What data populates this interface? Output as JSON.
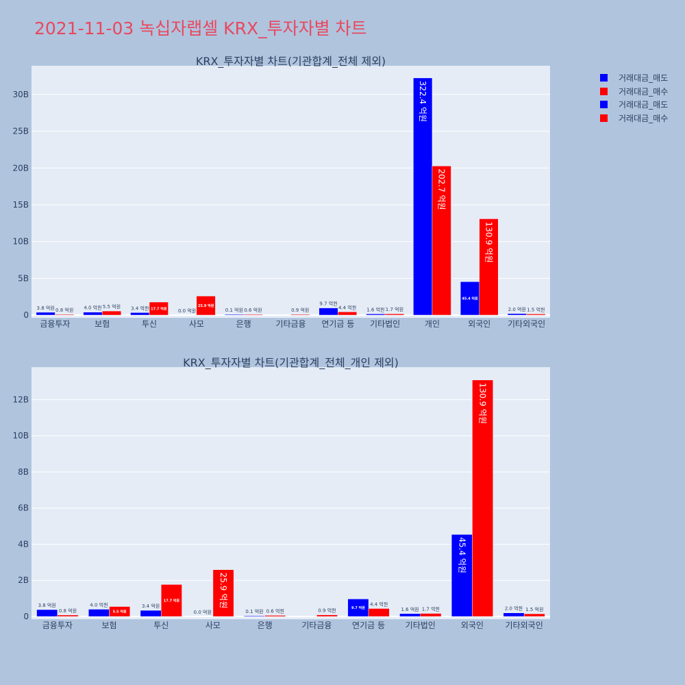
{
  "page": {
    "title": "2021-11-03 녹십자랩셀 KRX_투자자별 차트"
  },
  "legend": [
    {
      "label": "거래대금_매도",
      "color": "#0000ff"
    },
    {
      "label": "거래대금_매수",
      "color": "#ff0000"
    },
    {
      "label": "거래대금_매도",
      "color": "#0000ff"
    },
    {
      "label": "거래대금_매수",
      "color": "#ff0000"
    }
  ],
  "chart_data": [
    {
      "type": "bar",
      "title": "KRX_투자자별 차트(기관합계_전체 제외)",
      "categories": [
        "금융투자",
        "보험",
        "투신",
        "사모",
        "은행",
        "기타금융",
        "연기금 등",
        "기타법인",
        "개인",
        "외국인",
        "기타외국인"
      ],
      "series": [
        {
          "name": "거래대금_매도",
          "color": "#0000ff",
          "values": [
            0.38,
            0.4,
            0.34,
            0.0,
            0.01,
            0.0,
            0.97,
            0.16,
            32.24,
            4.54,
            0.2
          ],
          "labels": [
            "3.8 억원",
            "4.0 억원",
            "3.4 억원",
            "0.0 억원",
            "0.1 억원",
            "",
            "9.7 억원",
            "1.6 억원",
            "322.4 억원",
            "45.4 억원",
            "2.0 억원"
          ]
        },
        {
          "name": "거래대금_매수",
          "color": "#ff0000",
          "values": [
            0.08,
            0.55,
            1.77,
            2.59,
            0.06,
            0.09,
            0.44,
            0.17,
            20.27,
            13.09,
            0.15
          ],
          "labels": [
            "0.8 억원",
            "5.5 억원",
            "17.7 억원",
            "25.9 억원",
            "0.6 억원",
            "0.9 억원",
            "4.4 억원",
            "1.7 억원",
            "202.7 억원",
            "130.9 억원",
            "1.5 억원"
          ]
        }
      ],
      "yticks": [
        0,
        5,
        10,
        15,
        20,
        25,
        30
      ],
      "ytick_labels": [
        "0",
        "5B",
        "10B",
        "15B",
        "20B",
        "25B",
        "30B"
      ],
      "ylim": [
        0,
        33.9
      ],
      "value_unit": "billions"
    },
    {
      "type": "bar",
      "title": "KRX_투자자별 차트(기관합계_전체_개인 제외)",
      "categories": [
        "금융투자",
        "보험",
        "투신",
        "사모",
        "은행",
        "기타금융",
        "연기금 등",
        "기타법인",
        "외국인",
        "기타외국인"
      ],
      "series": [
        {
          "name": "거래대금_매도",
          "color": "#0000ff",
          "values": [
            0.38,
            0.4,
            0.34,
            0.0,
            0.01,
            0.0,
            0.97,
            0.16,
            4.54,
            0.2
          ],
          "labels": [
            "3.8 억원",
            "4.0 억원",
            "3.4 억원",
            "0.0 억원",
            "0.1 억원",
            "",
            "9.7 억원",
            "1.6 억원",
            "45.4 억원",
            "2.0 억원"
          ]
        },
        {
          "name": "거래대금_매수",
          "color": "#ff0000",
          "values": [
            0.08,
            0.55,
            1.77,
            2.59,
            0.06,
            0.09,
            0.44,
            0.17,
            13.09,
            0.15
          ],
          "labels": [
            "0.8 억원",
            "5.5 억원",
            "17.7 억원",
            "25.9 억원",
            "0.6 억원",
            "0.9 억원",
            "4.4 억원",
            "1.7 억원",
            "130.9 억원",
            "1.5 억원"
          ]
        }
      ],
      "yticks": [
        0,
        2,
        4,
        6,
        8,
        10,
        12
      ],
      "ytick_labels": [
        "0",
        "2B",
        "4B",
        "6B",
        "8B",
        "10B",
        "12B"
      ],
      "ylim": [
        0,
        13.8
      ],
      "value_unit": "billions"
    }
  ]
}
